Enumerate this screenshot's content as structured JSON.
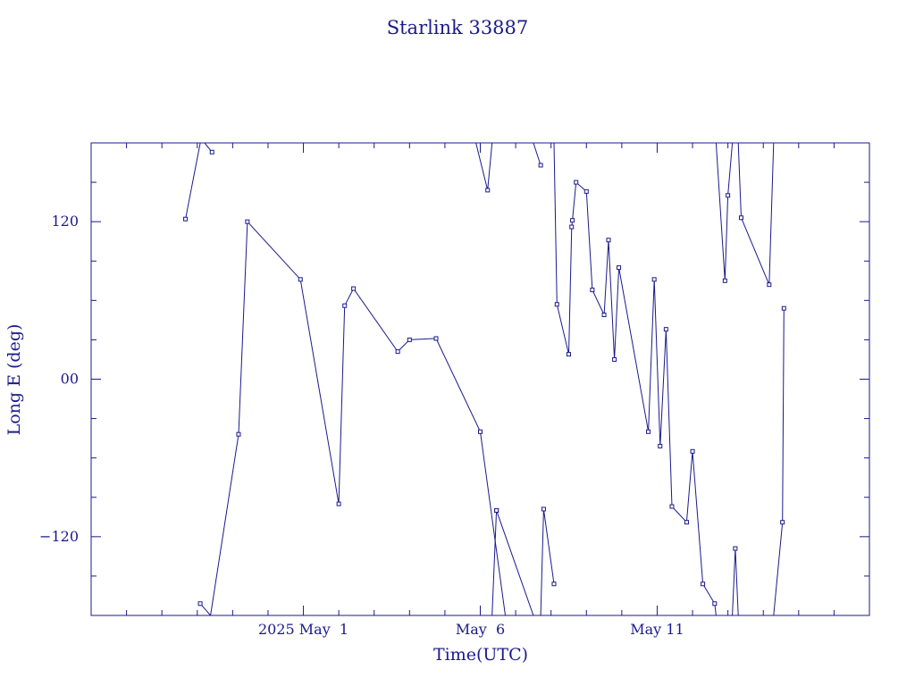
{
  "chart_data": {
    "type": "line",
    "title": "Starlink 33887",
    "xlabel": "Time(UTC)",
    "ylabel": "Long E (deg)",
    "x_unit": "days",
    "xlim": [
      "2025-04-25T00:00",
      "2025-05-17T00:00"
    ],
    "ylim": [
      -180,
      180
    ],
    "x_ticks": [
      {
        "t": "2025-05-01",
        "label": "2025 May  1"
      },
      {
        "t": "2025-05-06",
        "label": "May  6"
      },
      {
        "t": "2025-05-11",
        "label": "May 11"
      }
    ],
    "y_ticks": [
      {
        "value": 120,
        "label": "120"
      },
      {
        "value": 0,
        "label": "00"
      },
      {
        "value": -120,
        "label": "−120"
      }
    ],
    "color": "#1a1a8c",
    "series": [
      {
        "points": [
          {
            "t": "2025-04-27T16:00",
            "lon": 122
          },
          {
            "t": "2025-04-28T02:00",
            "lon": 180
          }
        ]
      },
      {
        "points": [
          {
            "t": "2025-04-28T05:00",
            "lon": 180
          },
          {
            "t": "2025-04-28T10:00",
            "lon": 173
          }
        ]
      },
      {
        "points": [
          {
            "t": "2025-04-28T02:00",
            "lon": -171
          },
          {
            "t": "2025-04-28T09:00",
            "lon": -180
          }
        ]
      },
      {
        "points": [
          {
            "t": "2025-04-28T09:00",
            "lon": -180
          },
          {
            "t": "2025-04-29T04:00",
            "lon": -42
          },
          {
            "t": "2025-04-29T10:00",
            "lon": 120
          },
          {
            "t": "2025-04-30T22:00",
            "lon": 76
          },
          {
            "t": "2025-05-02T00:00",
            "lon": -95
          },
          {
            "t": "2025-05-02T04:00",
            "lon": 56
          },
          {
            "t": "2025-05-02T10:00",
            "lon": 69
          },
          {
            "t": "2025-05-03T16:00",
            "lon": 21
          },
          {
            "t": "2025-05-04T00:00",
            "lon": 30
          },
          {
            "t": "2025-05-04T18:00",
            "lon": 31
          },
          {
            "t": "2025-05-06T00:00",
            "lon": -40
          },
          {
            "t": "2025-05-06T17:00",
            "lon": -180
          }
        ]
      },
      {
        "points": [
          {
            "t": "2025-05-05T21:00",
            "lon": 180
          },
          {
            "t": "2025-05-06T05:00",
            "lon": 144
          },
          {
            "t": "2025-05-06T08:00",
            "lon": 180
          }
        ]
      },
      {
        "points": [
          {
            "t": "2025-05-06T08:00",
            "lon": -180
          },
          {
            "t": "2025-05-06T11:00",
            "lon": -100
          }
        ]
      },
      {
        "points": [
          {
            "t": "2025-05-06T11:00",
            "lon": -100
          },
          {
            "t": "2025-05-07T12:00",
            "lon": -180
          }
        ]
      },
      {
        "points": [
          {
            "t": "2025-05-07T12:00",
            "lon": 180
          },
          {
            "t": "2025-05-07T17:00",
            "lon": 163
          }
        ]
      },
      {
        "points": [
          {
            "t": "2025-05-07T17:00",
            "lon": -180
          },
          {
            "t": "2025-05-07T19:00",
            "lon": -99
          },
          {
            "t": "2025-05-08T02:00",
            "lon": -156
          }
        ]
      },
      {
        "points": [
          {
            "t": "2025-05-08T02:00",
            "lon": 180
          },
          {
            "t": "2025-05-08T04:00",
            "lon": 57
          },
          {
            "t": "2025-05-08T12:00",
            "lon": 19
          },
          {
            "t": "2025-05-08T14:00",
            "lon": 116
          },
          {
            "t": "2025-05-08T14:30",
            "lon": 121
          },
          {
            "t": "2025-05-08T17:00",
            "lon": 150
          },
          {
            "t": "2025-05-09T00:00",
            "lon": 143
          },
          {
            "t": "2025-05-09T04:00",
            "lon": 68
          },
          {
            "t": "2025-05-09T12:00",
            "lon": 49
          },
          {
            "t": "2025-05-09T15:00",
            "lon": 106
          },
          {
            "t": "2025-05-09T19:00",
            "lon": 15
          },
          {
            "t": "2025-05-09T22:00",
            "lon": 85
          },
          {
            "t": "2025-05-10T18:00",
            "lon": -40
          },
          {
            "t": "2025-05-10T22:00",
            "lon": 76
          },
          {
            "t": "2025-05-11T02:00",
            "lon": -51
          },
          {
            "t": "2025-05-11T06:00",
            "lon": 38
          },
          {
            "t": "2025-05-11T10:00",
            "lon": -97
          },
          {
            "t": "2025-05-11T20:00",
            "lon": -109
          },
          {
            "t": "2025-05-12T00:00",
            "lon": -55
          },
          {
            "t": "2025-05-12T07:00",
            "lon": -156
          },
          {
            "t": "2025-05-12T15:00",
            "lon": -171
          },
          {
            "t": "2025-05-12T16:00",
            "lon": -180
          }
        ]
      },
      {
        "points": [
          {
            "t": "2025-05-12T16:00",
            "lon": 180
          },
          {
            "t": "2025-05-12T22:00",
            "lon": 75
          },
          {
            "t": "2025-05-13T00:00",
            "lon": 140
          },
          {
            "t": "2025-05-13T03:00",
            "lon": 180
          }
        ]
      },
      {
        "points": [
          {
            "t": "2025-05-13T03:00",
            "lon": -180
          },
          {
            "t": "2025-05-13T05:00",
            "lon": -129
          },
          {
            "t": "2025-05-13T07:00",
            "lon": -180
          }
        ]
      },
      {
        "points": [
          {
            "t": "2025-05-13T07:00",
            "lon": 180
          },
          {
            "t": "2025-05-13T09:00",
            "lon": 123
          },
          {
            "t": "2025-05-14T04:00",
            "lon": 72
          },
          {
            "t": "2025-05-14T07:00",
            "lon": 180
          }
        ]
      },
      {
        "points": [
          {
            "t": "2025-05-14T07:00",
            "lon": -180
          },
          {
            "t": "2025-05-14T13:00",
            "lon": -109
          },
          {
            "t": "2025-05-14T14:00",
            "lon": 54
          }
        ]
      }
    ]
  }
}
